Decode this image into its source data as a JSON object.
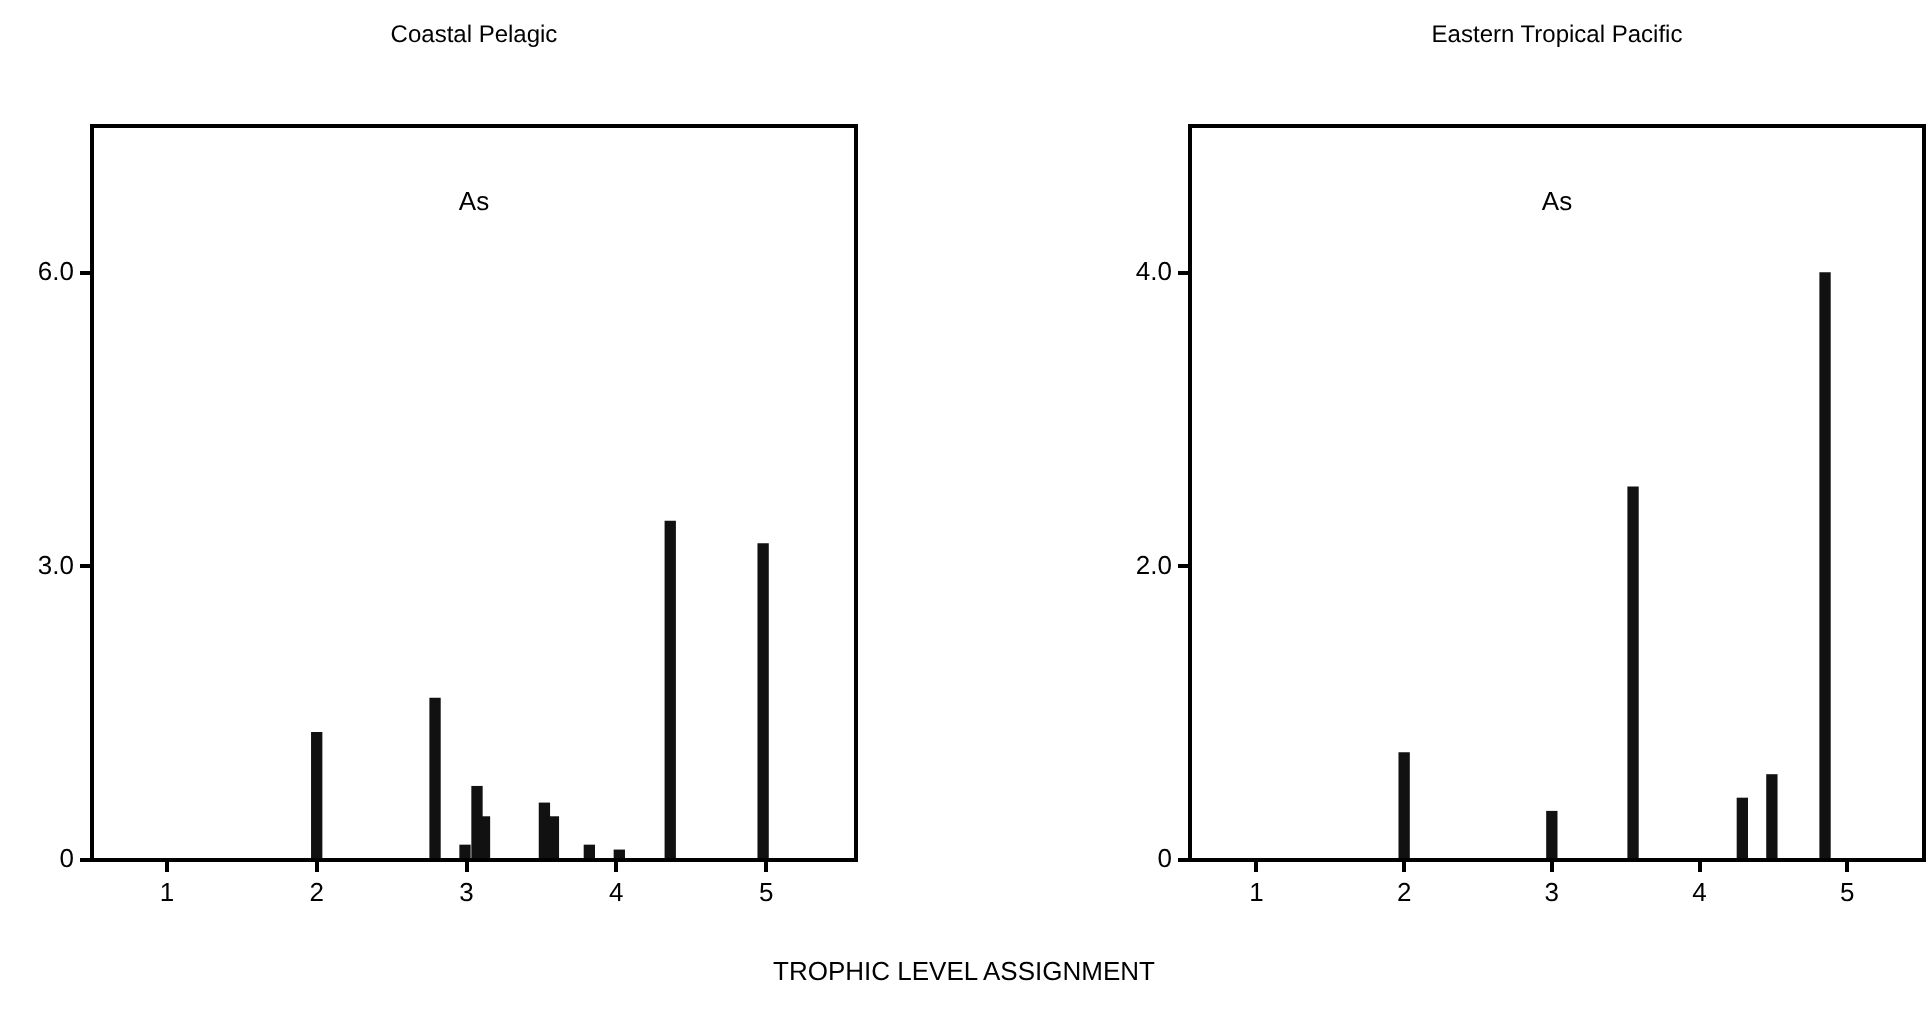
{
  "chart_data": [
    {
      "type": "bar",
      "title": "Coastal Pelagic",
      "xlabel": "TROPHIC LEVEL ASSIGNMENT",
      "annotations": [
        "As"
      ],
      "x": [
        2,
        2.79,
        2.99,
        3.07,
        3.12,
        3.52,
        3.58,
        3.82,
        4.02,
        4.36,
        4.98
      ],
      "values": [
        1.3,
        1.65,
        0.15,
        0.75,
        0.44,
        0.58,
        0.44,
        0.15,
        0.1,
        3.46,
        3.23
      ],
      "color": "#111111",
      "xlim": [
        0.5,
        5.6
      ],
      "xticks": [
        1,
        2,
        3,
        4,
        5
      ],
      "ylim": [
        0,
        7.5
      ],
      "yticks": [
        0,
        {
          "value": 3,
          "label": "3.0"
        },
        {
          "value": 6,
          "label": "6.0"
        }
      ],
      "grid": false
    },
    {
      "type": "bar",
      "title": "Eastern Tropical Pacific",
      "annotations": [
        "As"
      ],
      "x": [
        2,
        3,
        3.55,
        4.29,
        4.49,
        4.85
      ],
      "values": [
        0.73,
        0.33,
        2.54,
        0.42,
        0.58,
        4.0
      ],
      "color": "#111111",
      "xlim": [
        0.55,
        5.52
      ],
      "xticks": [
        1,
        2,
        3,
        4,
        5
      ],
      "ylim": [
        0,
        5
      ],
      "yticks": [
        0,
        {
          "value": 2,
          "label": "2.0"
        },
        {
          "value": 4,
          "label": "4.0"
        }
      ],
      "grid": false
    }
  ]
}
